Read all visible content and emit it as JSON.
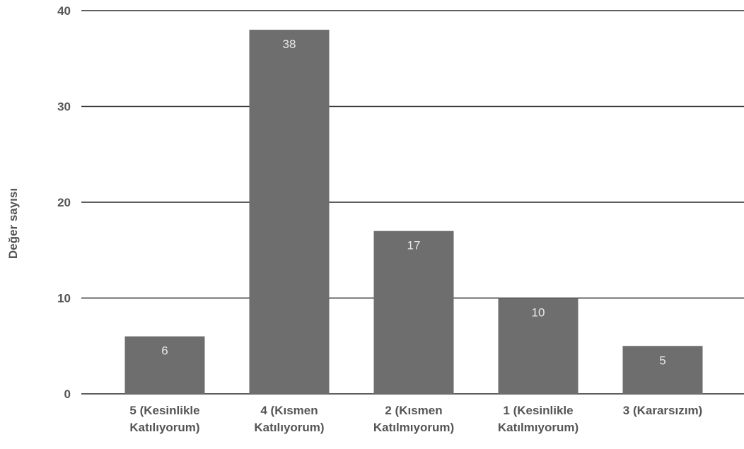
{
  "chart_data": {
    "type": "bar",
    "title": "",
    "xlabel": "",
    "ylabel": "Değer sayısı",
    "ylim": [
      0,
      40
    ],
    "yticks": [
      "0",
      "10",
      "20",
      "30",
      "40"
    ],
    "grid": true,
    "categories": [
      [
        "5 (Kesinlikle",
        "Katılıyorum)"
      ],
      [
        "4 (Kısmen",
        "Katılıyorum)"
      ],
      [
        "2 (Kısmen",
        "Katılmıyorum)"
      ],
      [
        "1 (Kesinlikle",
        "Katılmıyorum)"
      ],
      [
        "3 (Kararsızım)"
      ]
    ],
    "values": [
      6,
      38,
      17,
      10,
      5
    ],
    "data_labels": [
      "6",
      "38",
      "17",
      "10",
      "5"
    ],
    "colors": {
      "bar": "#6e6e6e",
      "bar_label": "#e8e8e8",
      "grid": "#2a2a2a",
      "tick_label": "#555555",
      "axis_title": "#555555"
    }
  }
}
